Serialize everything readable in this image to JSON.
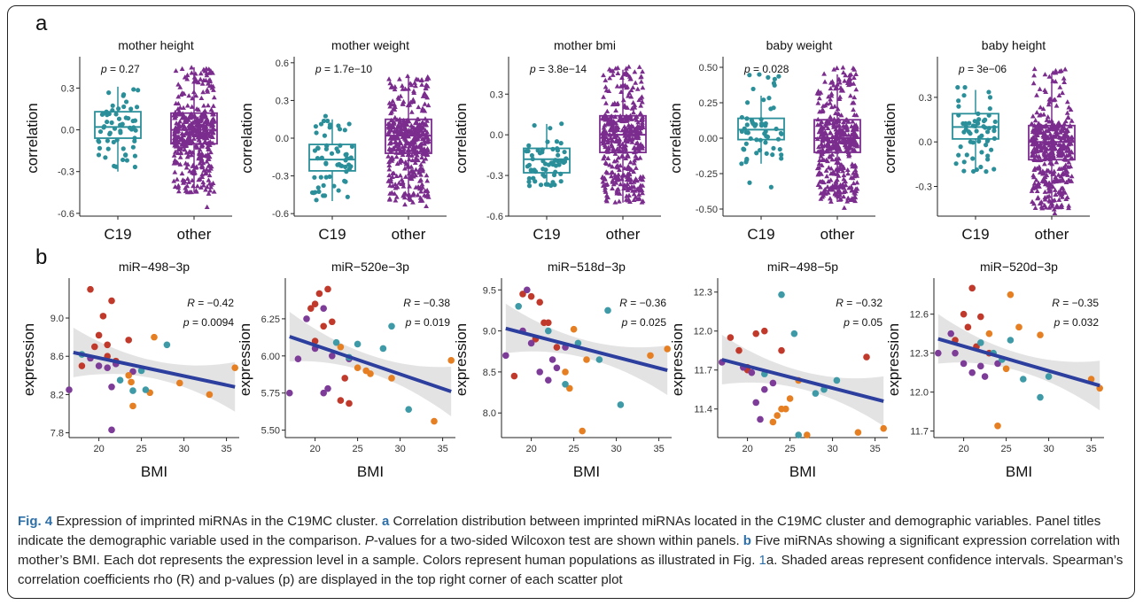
{
  "panel_labels": {
    "a": "a",
    "b": "b"
  },
  "caption": {
    "fig_label": "Fig. 4",
    "s1": " Expression of imprinted miRNAs in the C19MC cluster. ",
    "a": "a",
    "s2": " Correlation distribution between imprinted miRNAs located in the C19MC cluster and demographic variables. Panel titles indicate the demographic variable used in the comparison. ",
    "p_italic": "P",
    "s3": "-values for a two-sided Wilcoxon test are shown within panels. ",
    "b": "b",
    "s4": " Five miRNAs showing a significant expression correlation with mother’s BMI. Each dot represents the expression level in a sample. Colors represent human populations as illustrated in Fig. ",
    "fig_ref": "1",
    "s5": "a. Shaded areas represent confidence intervals. Spearman’s correlation coefficients rho (R) and p-values (p) are displayed in the top right corner of each scatter plot"
  },
  "colors": {
    "c19": "#2b8f9a",
    "other": "#7b2d8e",
    "pop": [
      "#c0392b",
      "#7d3c98",
      "#e67e22",
      "#3d9aa6"
    ],
    "regression": "#2c3e9e",
    "ci": "#d9d9d9"
  },
  "chart_data": [
    {
      "type": "box",
      "title": "mother height",
      "ylabel": "correlation",
      "categories": [
        "C19",
        "other"
      ],
      "yticks": [
        -0.6,
        -0.3,
        0.0,
        0.3
      ],
      "tick_labels": [
        "-0.6",
        "-0.3",
        "0.0",
        "0.3"
      ],
      "ylim": [
        -0.62,
        0.5
      ],
      "p_label": "p",
      "p_value": " = 0.27",
      "boxes": [
        {
          "q1": -0.06,
          "median": 0.02,
          "q3": 0.13,
          "whisker_low": -0.3,
          "whisker_high": 0.31
        },
        {
          "q1": -0.1,
          "median": 0.0,
          "q3": 0.12,
          "whisker_low": -0.45,
          "whisker_high": 0.45
        }
      ],
      "point_range": [
        [
          -0.36,
          0.31
        ],
        [
          -0.6,
          0.45
        ]
      ]
    },
    {
      "type": "box",
      "title": "mother weight",
      "ylabel": "correlation",
      "categories": [
        "C19",
        "other"
      ],
      "yticks": [
        -0.6,
        -0.3,
        0.0,
        0.3,
        0.6
      ],
      "tick_labels": [
        "-0.6",
        "-0.3",
        "0.0",
        "0.3",
        "0.6"
      ],
      "ylim": [
        -0.62,
        0.62
      ],
      "p_label": "p",
      "p_value": " = 1.7e−10",
      "boxes": [
        {
          "q1": -0.26,
          "median": -0.17,
          "q3": -0.05,
          "whisker_low": -0.5,
          "whisker_high": 0.15
        },
        {
          "q1": -0.12,
          "median": 0.02,
          "q3": 0.15,
          "whisker_low": -0.5,
          "whisker_high": 0.5
        }
      ],
      "point_range": [
        [
          -0.5,
          0.18
        ],
        [
          -0.55,
          0.5
        ]
      ]
    },
    {
      "type": "box",
      "title": "mother bmi",
      "ylabel": "correlation",
      "categories": [
        "C19",
        "other"
      ],
      "yticks": [
        -0.6,
        -0.3,
        0.0,
        0.3
      ],
      "tick_labels": [
        "-0.6",
        "-0.3",
        "0.0",
        "0.3"
      ],
      "ylim": [
        -0.6,
        0.55
      ],
      "p_label": "p",
      "p_value": " = 3.8e−14",
      "boxes": [
        {
          "q1": -0.28,
          "median": -0.18,
          "q3": -0.1,
          "whisker_low": -0.38,
          "whisker_high": 0.08
        },
        {
          "q1": -0.13,
          "median": 0.0,
          "q3": 0.14,
          "whisker_low": -0.5,
          "whisker_high": 0.48
        }
      ],
      "point_range": [
        [
          -0.38,
          0.1
        ],
        [
          -0.55,
          0.5
        ]
      ]
    },
    {
      "type": "box",
      "title": "baby weight",
      "ylabel": "correlation",
      "categories": [
        "C19",
        "other"
      ],
      "yticks": [
        -0.5,
        -0.25,
        0.0,
        0.25,
        0.5
      ],
      "tick_labels": [
        "-0.50",
        "-0.25",
        "0.00",
        "0.25",
        "0.50"
      ],
      "ylim": [
        -0.55,
        0.55
      ],
      "p_label": "p",
      "p_value": " = 0.028",
      "boxes": [
        {
          "q1": -0.01,
          "median": 0.06,
          "q3": 0.14,
          "whisker_low": -0.18,
          "whisker_high": 0.3
        },
        {
          "q1": -0.1,
          "median": 0.0,
          "q3": 0.13,
          "whisker_low": -0.45,
          "whisker_high": 0.45
        }
      ],
      "point_range": [
        [
          -0.35,
          0.45
        ],
        [
          -0.5,
          0.5
        ]
      ]
    },
    {
      "type": "box",
      "title": "baby height",
      "ylabel": "correlation",
      "categories": [
        "C19",
        "other"
      ],
      "yticks": [
        -0.3,
        0.0,
        0.3
      ],
      "tick_labels": [
        "-0.3",
        "0.0",
        "0.3"
      ],
      "ylim": [
        -0.5,
        0.55
      ],
      "p_label": "p",
      "p_value": " = 3e−06",
      "boxes": [
        {
          "q1": 0.02,
          "median": 0.1,
          "q3": 0.19,
          "whisker_low": -0.2,
          "whisker_high": 0.35
        },
        {
          "q1": -0.12,
          "median": 0.0,
          "q3": 0.11,
          "whisker_low": -0.45,
          "whisker_high": 0.45
        }
      ],
      "point_range": [
        [
          -0.22,
          0.4
        ],
        [
          -0.5,
          0.5
        ]
      ]
    },
    {
      "type": "scatter",
      "title": "miR−498−3p",
      "xlabel": "BMI",
      "ylabel": "expression",
      "xticks": [
        20,
        25,
        30,
        35
      ],
      "xlim": [
        16.5,
        36.5
      ],
      "yticks": [
        7.8,
        8.2,
        8.6,
        9.0
      ],
      "tick_labels": [
        "7.8",
        "8.2",
        "8.6",
        "9.0"
      ],
      "ylim": [
        7.75,
        9.38
      ],
      "R": " = −0.42",
      "p": " = 0.0094",
      "line": [
        [
          17,
          8.64
        ],
        [
          36,
          8.28
        ]
      ],
      "points": [
        [
          19,
          9.3,
          0
        ],
        [
          20.5,
          9.02,
          0
        ],
        [
          21.5,
          9.18,
          0
        ],
        [
          20,
          8.82,
          0
        ],
        [
          19.5,
          8.7,
          0
        ],
        [
          21,
          8.72,
          0
        ],
        [
          23.5,
          8.77,
          0
        ],
        [
          18,
          8.5,
          0
        ],
        [
          21,
          8.6,
          0
        ],
        [
          22,
          8.55,
          0
        ],
        [
          16.5,
          8.25,
          1
        ],
        [
          20,
          8.5,
          1
        ],
        [
          21,
          8.48,
          1
        ],
        [
          21.5,
          8.28,
          1
        ],
        [
          22,
          8.52,
          1
        ],
        [
          19,
          8.58,
          1
        ],
        [
          21.5,
          7.83,
          1
        ],
        [
          24,
          8.44,
          1
        ],
        [
          23.5,
          8.4,
          2
        ],
        [
          23.8,
          8.33,
          2
        ],
        [
          24,
          8.08,
          2
        ],
        [
          26.5,
          8.8,
          2
        ],
        [
          26,
          8.22,
          2
        ],
        [
          36,
          8.48,
          2
        ],
        [
          33,
          8.2,
          2
        ],
        [
          29.5,
          8.32,
          2
        ],
        [
          25,
          8.45,
          3
        ],
        [
          25.5,
          8.25,
          3
        ],
        [
          24,
          8.24,
          3
        ],
        [
          28,
          8.72,
          3
        ],
        [
          22.5,
          8.35,
          3
        ],
        [
          18,
          8.62,
          3
        ]
      ]
    },
    {
      "type": "scatter",
      "title": "miR−520e−3p",
      "xlabel": "BMI",
      "ylabel": "expression",
      "xticks": [
        20,
        25,
        30,
        35
      ],
      "xlim": [
        16.5,
        36.5
      ],
      "yticks": [
        5.5,
        5.75,
        6.0,
        6.25
      ],
      "tick_labels": [
        "5.50",
        "5.75",
        "6.00",
        "6.25"
      ],
      "ylim": [
        5.45,
        6.5
      ],
      "R": " = −0.38",
      "p": " = 0.019",
      "line": [
        [
          17,
          6.13
        ],
        [
          36,
          5.76
        ]
      ],
      "points": [
        [
          20,
          6.35,
          0
        ],
        [
          20.5,
          6.42,
          0
        ],
        [
          21.5,
          6.45,
          0
        ],
        [
          22,
          6.23,
          0
        ],
        [
          20,
          6.1,
          0
        ],
        [
          21,
          6.2,
          0
        ],
        [
          23.5,
          5.85,
          0
        ],
        [
          23,
          5.7,
          0
        ],
        [
          19.5,
          6.32,
          0
        ],
        [
          24,
          5.68,
          0
        ],
        [
          17,
          5.75,
          1
        ],
        [
          20,
          6.05,
          1
        ],
        [
          21,
          5.75,
          1
        ],
        [
          21.5,
          5.78,
          1
        ],
        [
          22,
          6.0,
          1
        ],
        [
          19,
          6.25,
          1
        ],
        [
          21,
          6.32,
          1
        ],
        [
          24,
          5.98,
          1
        ],
        [
          18,
          5.98,
          1
        ],
        [
          23,
          6.06,
          2
        ],
        [
          25,
          5.92,
          2
        ],
        [
          26,
          5.9,
          2
        ],
        [
          26.5,
          5.88,
          2
        ],
        [
          34,
          5.56,
          2
        ],
        [
          36,
          5.97,
          2
        ],
        [
          29,
          5.85,
          2
        ],
        [
          25,
          6.08,
          3
        ],
        [
          24,
          5.99,
          3
        ],
        [
          28,
          6.05,
          3
        ],
        [
          29,
          6.2,
          3
        ],
        [
          31,
          5.64,
          3
        ],
        [
          22.5,
          6.09,
          3
        ]
      ]
    },
    {
      "type": "scatter",
      "title": "miR−518d−3p",
      "xlabel": "BMI",
      "ylabel": "expression",
      "xticks": [
        20,
        25,
        30,
        35
      ],
      "xlim": [
        16.5,
        36.5
      ],
      "yticks": [
        8.0,
        8.5,
        9.0,
        9.5
      ],
      "tick_labels": [
        "8.0",
        "8.5",
        "9.0",
        "9.5"
      ],
      "ylim": [
        7.7,
        9.6
      ],
      "R": " = −0.36",
      "p": " = 0.025",
      "line": [
        [
          17,
          9.03
        ],
        [
          36,
          8.52
        ]
      ],
      "points": [
        [
          19,
          9.45,
          0
        ],
        [
          20,
          9.42,
          0
        ],
        [
          21,
          9.35,
          0
        ],
        [
          22,
          9.1,
          0
        ],
        [
          18,
          8.45,
          0
        ],
        [
          20.5,
          8.9,
          0
        ],
        [
          21.5,
          9.1,
          0
        ],
        [
          23,
          8.8,
          0
        ],
        [
          17,
          8.7,
          1
        ],
        [
          19.5,
          9.5,
          1
        ],
        [
          20,
          8.85,
          1
        ],
        [
          21,
          8.5,
          1
        ],
        [
          22,
          8.4,
          1
        ],
        [
          23,
          8.55,
          1
        ],
        [
          24,
          8.8,
          1
        ],
        [
          19,
          9.0,
          1
        ],
        [
          22.5,
          8.65,
          1
        ],
        [
          24,
          8.5,
          2
        ],
        [
          25,
          9.02,
          2
        ],
        [
          26,
          7.78,
          2
        ],
        [
          26.5,
          8.65,
          2
        ],
        [
          36,
          8.78,
          2
        ],
        [
          24.5,
          8.3,
          2
        ],
        [
          34,
          8.7,
          2
        ],
        [
          24,
          8.35,
          3
        ],
        [
          25.5,
          8.85,
          3
        ],
        [
          28,
          8.65,
          3
        ],
        [
          29,
          9.25,
          3
        ],
        [
          30.5,
          8.1,
          3
        ],
        [
          22,
          9.0,
          3
        ],
        [
          18.5,
          9.3,
          3
        ]
      ]
    },
    {
      "type": "scatter",
      "title": "miR−498−5p",
      "xlabel": "BMI",
      "ylabel": "expression",
      "xticks": [
        20,
        25,
        30,
        35
      ],
      "xlim": [
        16.5,
        36.5
      ],
      "yticks": [
        11.4,
        11.7,
        12.0,
        12.3
      ],
      "tick_labels": [
        "11.4",
        "11.7",
        "12.0",
        "12.3"
      ],
      "ylim": [
        11.18,
        12.38
      ],
      "R": " = −0.32",
      "p": " = 0.05",
      "line": [
        [
          17,
          11.78
        ],
        [
          36,
          11.46
        ]
      ],
      "points": [
        [
          18,
          11.95,
          0
        ],
        [
          19,
          11.85,
          0
        ],
        [
          20,
          11.72,
          0
        ],
        [
          21,
          11.98,
          0
        ],
        [
          22,
          12.0,
          0
        ],
        [
          24,
          11.85,
          0
        ],
        [
          34,
          11.8,
          0
        ],
        [
          20,
          11.7,
          0
        ],
        [
          17,
          11.76,
          1
        ],
        [
          19.5,
          11.72,
          1
        ],
        [
          21,
          11.45,
          1
        ],
        [
          21.5,
          11.32,
          1
        ],
        [
          22,
          11.55,
          1
        ],
        [
          23,
          11.6,
          1
        ],
        [
          20.5,
          11.68,
          1
        ],
        [
          23,
          11.3,
          2
        ],
        [
          24,
          11.4,
          2
        ],
        [
          24.5,
          11.4,
          2
        ],
        [
          25,
          11.48,
          2
        ],
        [
          26,
          11.62,
          2
        ],
        [
          27,
          11.2,
          2
        ],
        [
          33,
          11.22,
          2
        ],
        [
          36,
          11.25,
          2
        ],
        [
          23.5,
          11.35,
          2
        ],
        [
          24,
          12.28,
          3
        ],
        [
          25.5,
          11.98,
          3
        ],
        [
          28,
          11.52,
          3
        ],
        [
          29,
          11.55,
          3
        ],
        [
          30.5,
          11.62,
          3
        ],
        [
          22,
          11.67,
          3
        ],
        [
          26,
          11.2,
          3
        ]
      ]
    },
    {
      "type": "scatter",
      "title": "miR−520d−3p",
      "xlabel": "BMI",
      "ylabel": "expression",
      "xticks": [
        20,
        25,
        30,
        35
      ],
      "xlim": [
        16.5,
        36.5
      ],
      "yticks": [
        11.7,
        12.0,
        12.3,
        12.6
      ],
      "tick_labels": [
        "11.7",
        "12.0",
        "12.3",
        "12.6"
      ],
      "ylim": [
        11.65,
        12.85
      ],
      "R": " = −0.35",
      "p": " = 0.032",
      "line": [
        [
          17,
          12.41
        ],
        [
          36,
          12.05
        ]
      ],
      "points": [
        [
          20,
          12.6,
          0
        ],
        [
          21,
          12.8,
          0
        ],
        [
          22,
          12.58,
          0
        ],
        [
          20.5,
          12.5,
          0
        ],
        [
          23,
          12.3,
          0
        ],
        [
          21.5,
          12.35,
          0
        ],
        [
          19,
          12.4,
          0
        ],
        [
          17,
          12.3,
          1
        ],
        [
          18.5,
          12.45,
          1
        ],
        [
          20,
          12.22,
          1
        ],
        [
          21,
          12.15,
          1
        ],
        [
          22,
          12.2,
          1
        ],
        [
          22.5,
          12.12,
          1
        ],
        [
          24,
          12.22,
          1
        ],
        [
          19,
          12.3,
          1
        ],
        [
          23,
          12.45,
          2
        ],
        [
          24,
          11.74,
          2
        ],
        [
          25,
          12.18,
          2
        ],
        [
          25.5,
          12.75,
          2
        ],
        [
          26.5,
          12.5,
          2
        ],
        [
          29,
          12.44,
          2
        ],
        [
          35,
          12.1,
          2
        ],
        [
          36,
          12.03,
          2
        ],
        [
          22,
          12.38,
          3
        ],
        [
          24.5,
          12.25,
          3
        ],
        [
          25.5,
          12.4,
          3
        ],
        [
          27,
          12.1,
          3
        ],
        [
          29,
          11.96,
          3
        ],
        [
          30,
          12.12,
          3
        ],
        [
          23.5,
          12.3,
          3
        ]
      ]
    }
  ]
}
